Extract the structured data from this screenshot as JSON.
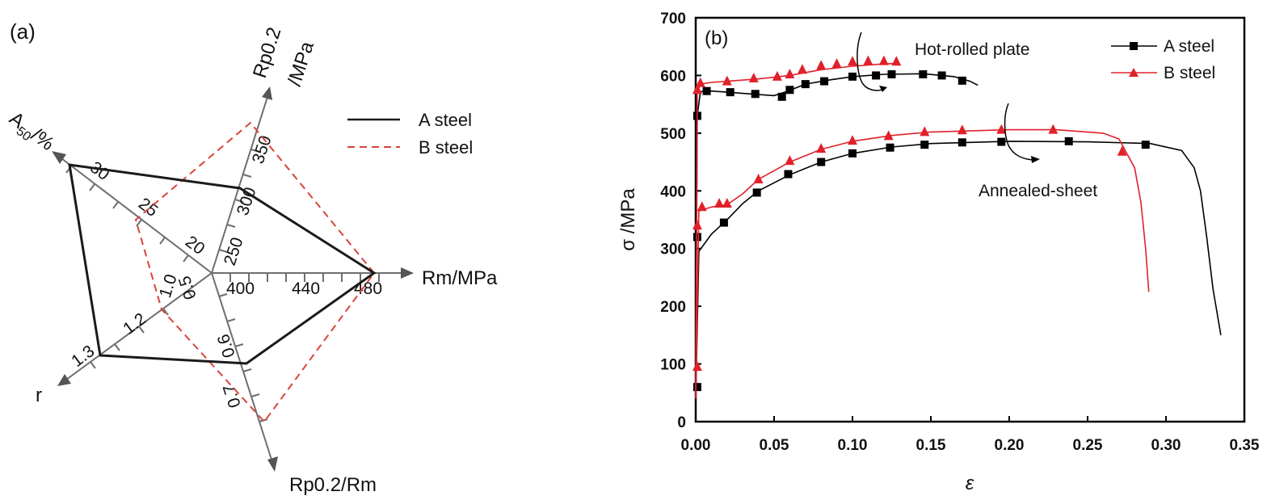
{
  "chart_data": [
    {
      "type": "radar",
      "panel_label": "(a)",
      "center_value_label": "1.0",
      "axes": [
        {
          "name": "Rm/MPa",
          "ticks": [
            "400",
            "440",
            "480"
          ]
        },
        {
          "name": "Rp0.2/Rm",
          "ticks": [
            "0.5",
            "0.6",
            "0.7"
          ]
        },
        {
          "name": "r",
          "ticks": [
            "1.2",
            "1.3"
          ]
        },
        {
          "name": "A50/%",
          "name_main": "A",
          "name_sub": "50",
          "name_rest": "/%",
          "ticks": [
            "20",
            "25",
            "30"
          ]
        },
        {
          "name": "Rp0.2 /MPa",
          "name_line1": "Rp0.2",
          "name_line2": "/MPa",
          "ticks": [
            "250",
            "300",
            "350"
          ]
        }
      ],
      "series": [
        {
          "name": "A steel",
          "color": "#1a1a1a",
          "style": "solid",
          "values": {
            "Rm/MPa": 487,
            "Rp0.2/Rm": 0.62,
            "r": 1.3,
            "A50/%": 34.5,
            "Rp0.2 /MPa": 295
          }
        },
        {
          "name": "B steel",
          "color": "#d9443a",
          "style": "dashed",
          "values": {
            "Rm/MPa": 487,
            "Rp0.2/Rm": 0.72,
            "r": 1.2,
            "A50/%": 25.5,
            "Rp0.2 /MPa": 350
          }
        }
      ]
    },
    {
      "type": "line",
      "panel_label": "(b)",
      "xlabel": "ε",
      "ylabel": "σ /MPa",
      "xlim": [
        0,
        0.35
      ],
      "ylim": [
        0,
        700
      ],
      "xticks": [
        "0.00",
        "0.05",
        "0.10",
        "0.15",
        "0.20",
        "0.25",
        "0.30",
        "0.35"
      ],
      "yticks": [
        "0",
        "100",
        "200",
        "300",
        "400",
        "500",
        "600",
        "700"
      ],
      "annotations": [
        "Hot-rolled plate",
        "Annealed-sheet"
      ],
      "series": [
        {
          "name": "A steel",
          "color": "#000000",
          "marker": "square",
          "curves": [
            {
              "points": [
                [
                  0,
                  40
                ],
                [
                  0.001,
                  530
                ],
                [
                  0.003,
                  572
                ],
                [
                  0.01,
                  573
                ],
                [
                  0.02,
                  571
                ],
                [
                  0.035,
                  568
                ],
                [
                  0.05,
                  565
                ],
                [
                  0.058,
                  572
                ],
                [
                  0.07,
                  585
                ],
                [
                  0.085,
                  592
                ],
                [
                  0.1,
                  598
                ],
                [
                  0.12,
                  602
                ],
                [
                  0.145,
                  603
                ],
                [
                  0.165,
                  598
                ],
                [
                  0.175,
                  590
                ],
                [
                  0.18,
                  583
                ]
              ],
              "markers": [
                [
                  0.001,
                  60
                ],
                [
                  0.001,
                  530
                ],
                [
                  0.007,
                  573
                ],
                [
                  0.022,
                  571
                ],
                [
                  0.038,
                  568
                ],
                [
                  0.055,
                  563
                ],
                [
                  0.06,
                  575
                ],
                [
                  0.07,
                  585
                ],
                [
                  0.082,
                  590
                ],
                [
                  0.1,
                  598
                ],
                [
                  0.115,
                  600
                ],
                [
                  0.125,
                  602
                ],
                [
                  0.145,
                  602
                ],
                [
                  0.157,
                  600
                ],
                [
                  0.17,
                  591
                ]
              ]
            },
            {
              "points": [
                [
                  0,
                  40
                ],
                [
                  0.002,
                  295
                ],
                [
                  0.01,
                  325
                ],
                [
                  0.02,
                  350
                ],
                [
                  0.03,
                  378
                ],
                [
                  0.04,
                  400
                ],
                [
                  0.06,
                  428
                ],
                [
                  0.08,
                  450
                ],
                [
                  0.1,
                  465
                ],
                [
                  0.125,
                  476
                ],
                [
                  0.15,
                  482
                ],
                [
                  0.2,
                  486
                ],
                [
                  0.25,
                  485
                ],
                [
                  0.29,
                  482
                ],
                [
                  0.31,
                  470
                ],
                [
                  0.318,
                  440
                ],
                [
                  0.322,
                  400
                ],
                [
                  0.326,
                  320
                ],
                [
                  0.33,
                  230
                ],
                [
                  0.335,
                  150
                ]
              ],
              "markers": [
                [
                  0.001,
                  320
                ],
                [
                  0.018,
                  345
                ],
                [
                  0.039,
                  397
                ],
                [
                  0.059,
                  429
                ],
                [
                  0.08,
                  450
                ],
                [
                  0.1,
                  465
                ],
                [
                  0.124,
                  475
                ],
                [
                  0.146,
                  480
                ],
                [
                  0.17,
                  484
                ],
                [
                  0.195,
                  485
                ],
                [
                  0.238,
                  486
                ],
                [
                  0.287,
                  480
                ]
              ]
            }
          ]
        },
        {
          "name": "B steel",
          "color": "#e0202a",
          "marker": "triangle",
          "curves": [
            {
              "points": [
                [
                  0,
                  40
                ],
                [
                  0.001,
                  570
                ],
                [
                  0.003,
                  585
                ],
                [
                  0.01,
                  588
                ],
                [
                  0.02,
                  590
                ],
                [
                  0.04,
                  594
                ],
                [
                  0.06,
                  600
                ],
                [
                  0.08,
                  610
                ],
                [
                  0.1,
                  616
                ],
                [
                  0.12,
                  620
                ],
                [
                  0.13,
                  621
                ]
              ],
              "markers": [
                [
                  0.001,
                  95
                ],
                [
                  0.001,
                  575
                ],
                [
                  0.003,
                  587
                ],
                [
                  0.02,
                  590
                ],
                [
                  0.037,
                  595
                ],
                [
                  0.052,
                  598
                ],
                [
                  0.06,
                  602
                ],
                [
                  0.068,
                  610
                ],
                [
                  0.08,
                  617
                ],
                [
                  0.09,
                  620
                ],
                [
                  0.1,
                  624
                ],
                [
                  0.11,
                  625
                ],
                [
                  0.12,
                  625
                ],
                [
                  0.128,
                  624
                ]
              ]
            },
            {
              "points": [
                [
                  0,
                  40
                ],
                [
                  0.002,
                  365
                ],
                [
                  0.01,
                  372
                ],
                [
                  0.02,
                  376
                ],
                [
                  0.03,
                  395
                ],
                [
                  0.04,
                  420
                ],
                [
                  0.06,
                  450
                ],
                [
                  0.08,
                  472
                ],
                [
                  0.1,
                  486
                ],
                [
                  0.125,
                  496
                ],
                [
                  0.15,
                  502
                ],
                [
                  0.2,
                  506
                ],
                [
                  0.23,
                  506
                ],
                [
                  0.26,
                  500
                ],
                [
                  0.27,
                  490
                ],
                [
                  0.28,
                  440
                ],
                [
                  0.284,
                  380
                ],
                [
                  0.287,
                  300
                ],
                [
                  0.289,
                  225
                ]
              ],
              "markers": [
                [
                  0.001,
                  340
                ],
                [
                  0.004,
                  372
                ],
                [
                  0.015,
                  378
                ],
                [
                  0.02,
                  378
                ],
                [
                  0.04,
                  420
                ],
                [
                  0.06,
                  452
                ],
                [
                  0.08,
                  473
                ],
                [
                  0.1,
                  487
                ],
                [
                  0.123,
                  495
                ],
                [
                  0.146,
                  502
                ],
                [
                  0.17,
                  505
                ],
                [
                  0.195,
                  506
                ],
                [
                  0.228,
                  506
                ],
                [
                  0.272,
                  468
                ]
              ]
            }
          ]
        }
      ]
    }
  ]
}
